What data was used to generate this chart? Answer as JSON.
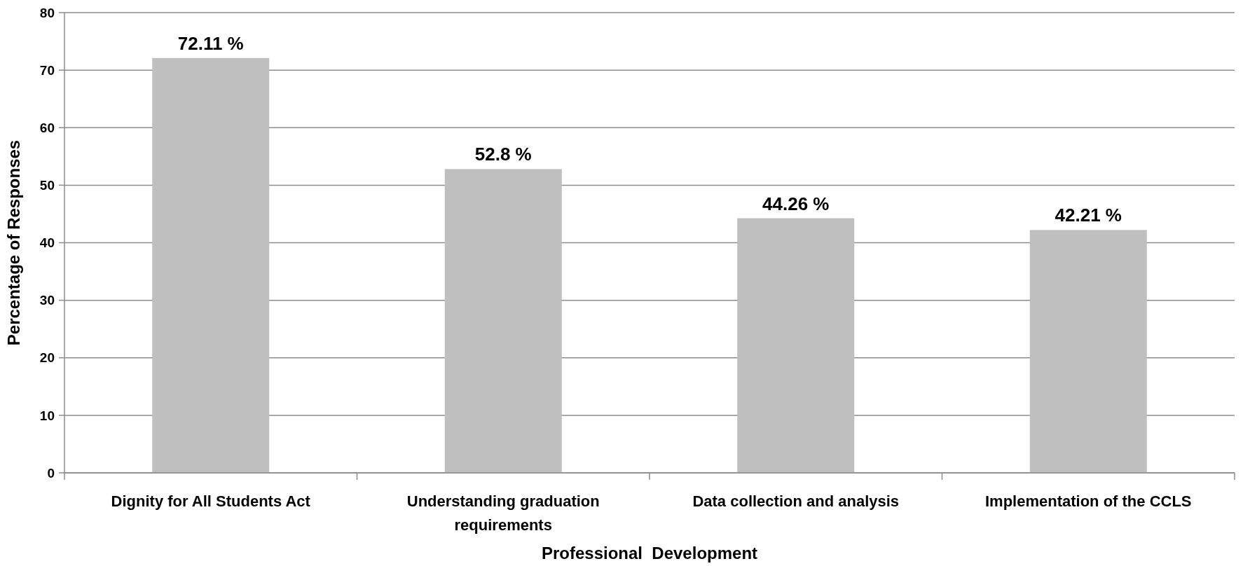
{
  "chart_data": {
    "type": "bar",
    "xlabel": "Professional  Development",
    "ylabel": "Percentage of Responses",
    "categories": [
      "Dignity for All Students Act",
      "Understanding graduation requirements",
      "Data collection and analysis",
      "Implementation of the CCLS"
    ],
    "values": [
      72.11,
      52.8,
      44.26,
      42.21
    ],
    "value_labels": [
      "72.11 %",
      "52.8 %",
      "44.26 %",
      "42.21 %"
    ],
    "color": "#bfbfbf",
    "ylim": [
      0,
      80
    ],
    "yticks": [
      0,
      10,
      20,
      30,
      40,
      50,
      60,
      70,
      80
    ],
    "grid": "y"
  }
}
